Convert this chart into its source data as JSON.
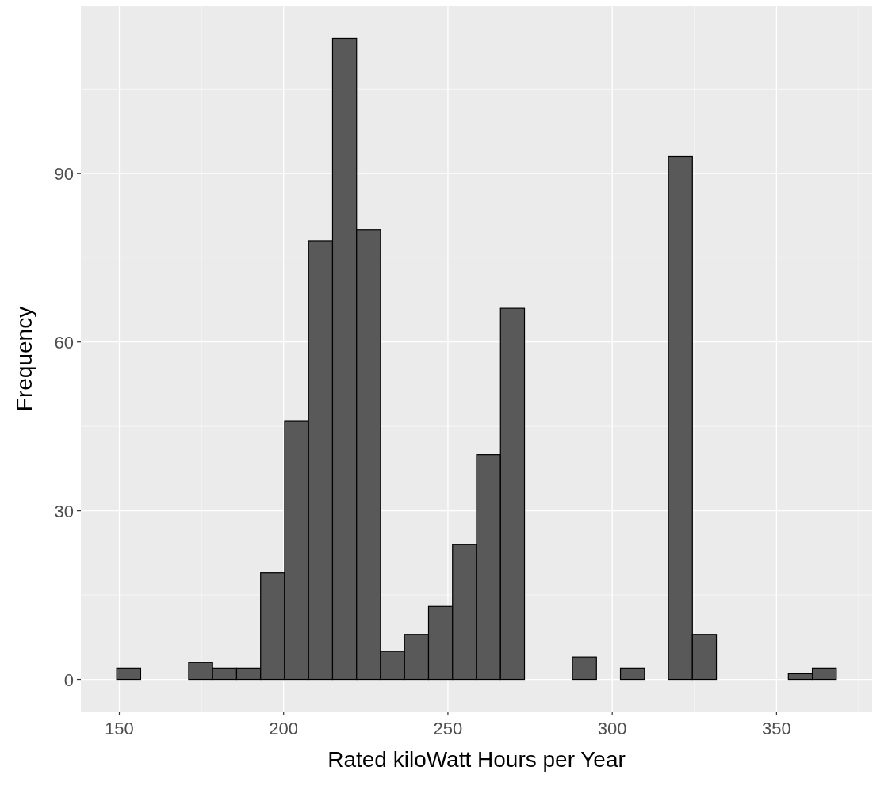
{
  "chart_data": {
    "type": "histogram",
    "xlabel": "Rated kiloWatt Hours per Year",
    "ylabel": "Frequency",
    "bins": [
      149.2,
      156.5,
      163.8,
      171.1,
      178.4,
      185.7,
      193,
      200.3,
      207.6,
      214.9,
      222.2,
      229.5,
      236.8,
      244.1,
      251.4,
      258.7,
      266,
      273.3,
      280.6,
      287.9,
      295.2,
      302.5,
      309.8,
      317.1,
      324.4,
      331.7,
      339,
      346.3,
      353.6,
      360.9,
      368.2
    ],
    "values": [
      2,
      0,
      0,
      3,
      2,
      2,
      19,
      46,
      78,
      114,
      80,
      5,
      8,
      13,
      24,
      40,
      66,
      0,
      0,
      4,
      0,
      2,
      0,
      93,
      8,
      0,
      0,
      0,
      1,
      2
    ],
    "color": "#595959",
    "xlim": [
      138.3,
      379.1
    ],
    "xticks": [
      150,
      200,
      250,
      300,
      350
    ],
    "ylim": [
      -5.7,
      119.7
    ],
    "yticks": [
      0,
      30,
      60,
      90
    ],
    "grid": true
  }
}
